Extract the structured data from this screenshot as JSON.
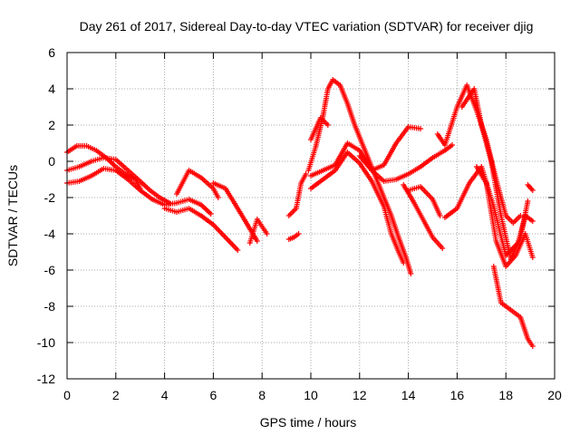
{
  "chart_data": {
    "type": "scatter",
    "title": "Day 261 of 2017, Sidereal Day-to-day VTEC variation (SDTVAR) for receiver djig",
    "xlabel": "GPS time / hours",
    "ylabel": "SDTVAR / TECUs",
    "xlim": [
      0,
      20
    ],
    "ylim": [
      -12,
      6
    ],
    "xticks": [
      0,
      2,
      4,
      6,
      8,
      10,
      12,
      14,
      16,
      18,
      20
    ],
    "yticks": [
      6,
      4,
      2,
      0,
      -2,
      -4,
      -6,
      -8,
      -10,
      -12
    ],
    "grid": true,
    "marker": "+",
    "color": "#ff0000",
    "series": [
      {
        "name": "track-1",
        "points": [
          [
            0.0,
            0.5
          ],
          [
            0.4,
            0.85
          ],
          [
            0.8,
            0.85
          ],
          [
            1.2,
            0.6
          ],
          [
            1.6,
            0.2
          ],
          [
            2.0,
            -0.3
          ],
          [
            2.4,
            -0.7
          ],
          [
            2.8,
            -1.0
          ],
          [
            3.0,
            -1.5
          ]
        ]
      },
      {
        "name": "track-2",
        "points": [
          [
            0.0,
            -0.5
          ],
          [
            0.5,
            -0.3
          ],
          [
            1.0,
            0.0
          ],
          [
            1.5,
            0.2
          ],
          [
            2.0,
            0.1
          ],
          [
            2.5,
            -0.5
          ],
          [
            3.0,
            -1.1
          ],
          [
            3.4,
            -1.6
          ],
          [
            3.8,
            -2.0
          ],
          [
            4.2,
            -2.3
          ]
        ]
      },
      {
        "name": "track-3",
        "points": [
          [
            0.0,
            -1.2
          ],
          [
            0.5,
            -1.1
          ],
          [
            1.0,
            -0.8
          ],
          [
            1.5,
            -0.4
          ],
          [
            2.0,
            -0.5
          ],
          [
            2.5,
            -1.0
          ],
          [
            3.0,
            -1.6
          ],
          [
            3.5,
            -2.1
          ],
          [
            4.0,
            -2.4
          ],
          [
            4.5,
            -2.3
          ],
          [
            5.0,
            -2.1
          ],
          [
            5.5,
            -2.4
          ],
          [
            5.9,
            -2.9
          ]
        ]
      },
      {
        "name": "track-4",
        "points": [
          [
            4.5,
            -1.8
          ],
          [
            5.0,
            -0.5
          ],
          [
            5.5,
            -0.9
          ],
          [
            6.0,
            -1.5
          ],
          [
            6.2,
            -2.0
          ]
        ]
      },
      {
        "name": "track-5",
        "points": [
          [
            4.0,
            -2.6
          ],
          [
            4.5,
            -2.8
          ],
          [
            5.0,
            -2.6
          ],
          [
            5.5,
            -3.0
          ],
          [
            6.0,
            -3.5
          ],
          [
            6.5,
            -4.2
          ],
          [
            7.0,
            -4.9
          ]
        ]
      },
      {
        "name": "track-6",
        "points": [
          [
            6.0,
            -1.2
          ],
          [
            6.5,
            -1.5
          ],
          [
            7.0,
            -2.6
          ],
          [
            7.4,
            -3.5
          ],
          [
            7.8,
            -4.4
          ]
        ]
      },
      {
        "name": "track-7",
        "points": [
          [
            7.5,
            -4.5
          ],
          [
            7.8,
            -3.2
          ],
          [
            8.0,
            -3.6
          ],
          [
            8.2,
            -4.0
          ]
        ]
      },
      {
        "name": "track-8",
        "points": [
          [
            9.1,
            -3.0
          ],
          [
            9.4,
            -2.6
          ],
          [
            9.6,
            -1.2
          ],
          [
            9.8,
            -0.7
          ]
        ]
      },
      {
        "name": "track-9",
        "points": [
          [
            9.1,
            -4.3
          ],
          [
            9.3,
            -4.2
          ],
          [
            9.5,
            -4.0
          ]
        ]
      },
      {
        "name": "track-10",
        "points": [
          [
            9.9,
            -0.5
          ],
          [
            10.2,
            0.8
          ],
          [
            10.5,
            2.5
          ],
          [
            10.7,
            4.0
          ],
          [
            10.9,
            4.5
          ],
          [
            11.2,
            4.2
          ],
          [
            11.5,
            3.2
          ],
          [
            11.8,
            2.0
          ],
          [
            12.1,
            1.0
          ],
          [
            12.4,
            0.0
          ],
          [
            12.7,
            -1.0
          ],
          [
            13.0,
            -2.0
          ],
          [
            13.3,
            -3.0
          ],
          [
            13.6,
            -4.2
          ],
          [
            13.9,
            -5.3
          ],
          [
            14.1,
            -6.2
          ]
        ]
      },
      {
        "name": "track-11",
        "points": [
          [
            10.0,
            1.2
          ],
          [
            10.4,
            2.4
          ],
          [
            10.7,
            2.0
          ]
        ]
      },
      {
        "name": "track-12",
        "points": [
          [
            10.0,
            -0.8
          ],
          [
            10.5,
            -0.5
          ],
          [
            11.0,
            -0.2
          ],
          [
            11.5,
            1.0
          ],
          [
            12.0,
            0.6
          ],
          [
            12.5,
            -0.5
          ],
          [
            13.0,
            -1.1
          ],
          [
            13.5,
            -1.0
          ],
          [
            14.0,
            -0.7
          ],
          [
            14.5,
            -0.3
          ],
          [
            15.0,
            0.2
          ],
          [
            15.5,
            0.6
          ],
          [
            15.8,
            0.9
          ]
        ]
      },
      {
        "name": "track-13",
        "points": [
          [
            10.0,
            -1.5
          ],
          [
            10.5,
            -1.0
          ],
          [
            11.0,
            -0.5
          ],
          [
            11.5,
            0.5
          ],
          [
            12.0,
            -0.1
          ],
          [
            12.5,
            -1.1
          ],
          [
            13.0,
            -2.5
          ],
          [
            13.3,
            -4.0
          ],
          [
            13.6,
            -5.0
          ],
          [
            13.8,
            -5.6
          ]
        ]
      },
      {
        "name": "track-14",
        "points": [
          [
            12.0,
            0.3
          ],
          [
            12.5,
            -0.5
          ],
          [
            13.0,
            -0.2
          ],
          [
            13.5,
            1.0
          ],
          [
            14.0,
            1.9
          ],
          [
            14.5,
            1.8
          ]
        ]
      },
      {
        "name": "track-15",
        "points": [
          [
            13.8,
            -1.3
          ],
          [
            14.2,
            -2.2
          ],
          [
            14.6,
            -3.2
          ],
          [
            15.0,
            -4.2
          ],
          [
            15.4,
            -4.8
          ]
        ]
      },
      {
        "name": "track-16",
        "points": [
          [
            14.0,
            -1.6
          ],
          [
            14.5,
            -1.4
          ],
          [
            15.0,
            -2.1
          ],
          [
            15.3,
            -3.0
          ]
        ]
      },
      {
        "name": "track-17",
        "points": [
          [
            15.2,
            1.5
          ],
          [
            15.5,
            0.9
          ],
          [
            16.0,
            3.0
          ],
          [
            16.4,
            4.2
          ],
          [
            16.8,
            2.8
          ],
          [
            17.2,
            1.2
          ],
          [
            17.6,
            -1.0
          ],
          [
            18.0,
            -3.0
          ],
          [
            18.3,
            -3.4
          ],
          [
            18.6,
            -3.0
          ]
        ]
      },
      {
        "name": "track-18",
        "points": [
          [
            15.5,
            -3.1
          ],
          [
            16.0,
            -2.6
          ],
          [
            16.5,
            -1.2
          ],
          [
            17.0,
            -0.3
          ],
          [
            17.5,
            -2.5
          ],
          [
            18.0,
            -5.2
          ],
          [
            18.5,
            -4.5
          ],
          [
            18.8,
            -3.0
          ],
          [
            19.1,
            -3.3
          ]
        ]
      },
      {
        "name": "track-19",
        "points": [
          [
            16.2,
            3.0
          ],
          [
            16.7,
            4.0
          ],
          [
            17.0,
            2.0
          ],
          [
            17.4,
            0.0
          ],
          [
            17.8,
            -3.0
          ],
          [
            18.2,
            -5.4
          ],
          [
            18.6,
            -4.2
          ],
          [
            18.9,
            -2.2
          ]
        ]
      },
      {
        "name": "track-20",
        "points": [
          [
            16.8,
            -0.3
          ],
          [
            17.2,
            -1.2
          ],
          [
            17.6,
            -4.4
          ],
          [
            18.0,
            -5.8
          ],
          [
            18.4,
            -5.2
          ],
          [
            18.8,
            -4.0
          ],
          [
            19.1,
            -5.3
          ]
        ]
      },
      {
        "name": "track-21",
        "points": [
          [
            17.5,
            -5.8
          ],
          [
            17.8,
            -7.8
          ],
          [
            18.2,
            -8.2
          ],
          [
            18.6,
            -8.6
          ],
          [
            18.9,
            -9.8
          ],
          [
            19.1,
            -10.2
          ]
        ]
      },
      {
        "name": "track-22",
        "points": [
          [
            18.9,
            -1.3
          ],
          [
            19.1,
            -1.6
          ]
        ]
      }
    ]
  }
}
